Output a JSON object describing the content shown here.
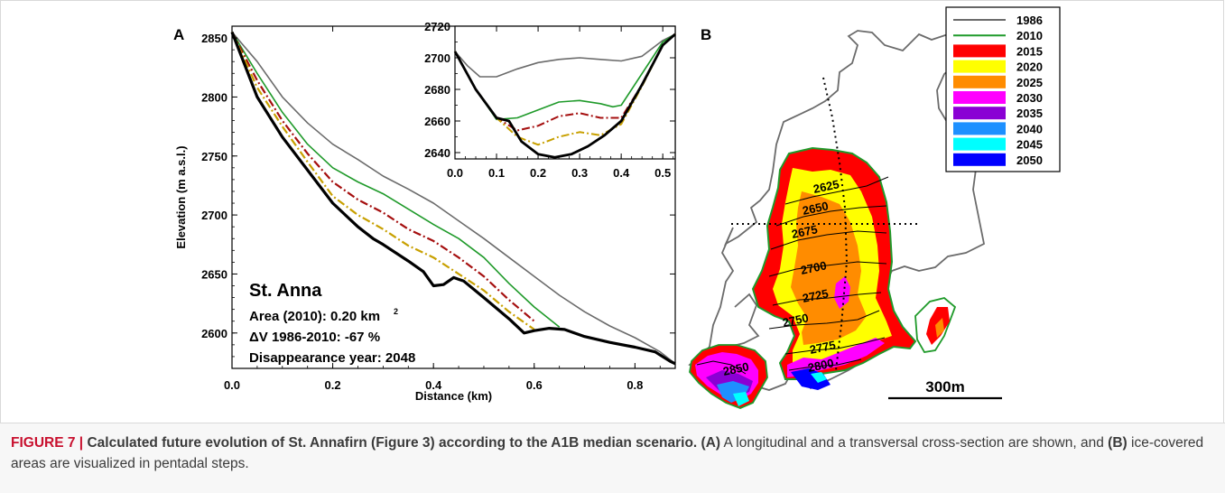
{
  "caption": {
    "label": "FIGURE 7 |",
    "title": "Calculated future evolution of St. Annafirn (Figure 3) according to the A1B median scenario.",
    "ref_a": "(A)",
    "text_a": "A longitudinal and a transversal cross-section are shown, and",
    "ref_b": "(B)",
    "text_b": "ice-covered areas are visualized in pentadal steps."
  },
  "colors": {
    "y1986": "#6b6b6b",
    "y2010": "#1f9a2a",
    "dashdot_red": "#a50f0f",
    "dashdot_yellow": "#c8a000",
    "final": "#000000",
    "s2015": "#ff0000",
    "s2020": "#ffff00",
    "s2025": "#ff8c00",
    "s2030": "#ff00ff",
    "s2035": "#8a00d4",
    "s2040": "#1e90ff",
    "s2045": "#00ffff",
    "s2050": "#0000ff"
  },
  "panel_a": {
    "label": "A",
    "glacier": "St. Anna",
    "area_label": "Area (2010): 0.20 km",
    "area_sup": "2",
    "dv_label": "ΔV 1986-2010: -67 %",
    "disappearance": "Disappearance year: 2048"
  },
  "panel_b": {
    "label": "B",
    "scale_label": "300m",
    "contours": [
      "2625",
      "2650",
      "2675",
      "2700",
      "2725",
      "2750",
      "2775",
      "2800",
      "2850"
    ],
    "legend": [
      {
        "label": "1986",
        "kind": "line",
        "color": "#6b6b6b"
      },
      {
        "label": "2010",
        "kind": "line",
        "color": "#1f9a2a"
      },
      {
        "label": "2015",
        "kind": "box",
        "color": "#ff0000"
      },
      {
        "label": "2020",
        "kind": "box",
        "color": "#ffff00"
      },
      {
        "label": "2025",
        "kind": "box",
        "color": "#ff8c00"
      },
      {
        "label": "2030",
        "kind": "box",
        "color": "#ff00ff"
      },
      {
        "label": "2035",
        "kind": "box",
        "color": "#8a00d4"
      },
      {
        "label": "2040",
        "kind": "box",
        "color": "#1e90ff"
      },
      {
        "label": "2045",
        "kind": "box",
        "color": "#00ffff"
      },
      {
        "label": "2050",
        "kind": "box",
        "color": "#0000ff"
      }
    ]
  },
  "chart_data": [
    {
      "type": "line",
      "xlabel": "Distance (km)",
      "ylabel": "Elevation (m a.s.l.)",
      "xlim": [
        0,
        0.88
      ],
      "ylim": [
        2570,
        2860
      ],
      "xticks": [
        "0.0",
        "0.2",
        "0.4",
        "0.6",
        "0.8"
      ],
      "yticks": [
        "2600",
        "2650",
        "2700",
        "2750",
        "2800",
        "2850"
      ],
      "series": [
        {
          "name": "1986",
          "style": "solid",
          "color": "#6b6b6b",
          "x": [
            0.0,
            0.05,
            0.1,
            0.15,
            0.2,
            0.25,
            0.3,
            0.35,
            0.4,
            0.45,
            0.5,
            0.55,
            0.6,
            0.65,
            0.7,
            0.75,
            0.8,
            0.85,
            0.88
          ],
          "y": [
            2855,
            2830,
            2800,
            2778,
            2760,
            2747,
            2733,
            2722,
            2710,
            2695,
            2680,
            2664,
            2648,
            2632,
            2618,
            2606,
            2596,
            2584,
            2574
          ]
        },
        {
          "name": "2010",
          "style": "solid",
          "color": "#1f9a2a",
          "x": [
            0.0,
            0.05,
            0.1,
            0.15,
            0.2,
            0.25,
            0.3,
            0.35,
            0.4,
            0.45,
            0.5,
            0.55,
            0.6,
            0.65
          ],
          "y": [
            2855,
            2820,
            2787,
            2760,
            2740,
            2728,
            2718,
            2705,
            2692,
            2680,
            2664,
            2642,
            2622,
            2605
          ]
        },
        {
          "name": "",
          "style": "dashdot",
          "color": "#a50f0f",
          "x": [
            0.0,
            0.05,
            0.1,
            0.15,
            0.2,
            0.25,
            0.3,
            0.35,
            0.4,
            0.45,
            0.5,
            0.55,
            0.6
          ],
          "y": [
            2855,
            2814,
            2780,
            2752,
            2728,
            2713,
            2702,
            2688,
            2678,
            2664,
            2648,
            2628,
            2610
          ]
        },
        {
          "name": "",
          "style": "dashdot",
          "color": "#c8a000",
          "x": [
            0.0,
            0.05,
            0.1,
            0.15,
            0.2,
            0.25,
            0.3,
            0.35,
            0.4,
            0.45,
            0.5,
            0.55,
            0.6
          ],
          "y": [
            2855,
            2808,
            2775,
            2745,
            2716,
            2700,
            2688,
            2674,
            2664,
            2650,
            2636,
            2618,
            2603
          ]
        },
        {
          "name": "",
          "style": "solid-thick",
          "color": "#000000",
          "x": [
            0.0,
            0.05,
            0.1,
            0.15,
            0.2,
            0.25,
            0.28,
            0.3,
            0.35,
            0.38,
            0.4,
            0.42,
            0.44,
            0.46,
            0.5,
            0.55,
            0.58,
            0.6,
            0.63,
            0.66,
            0.7,
            0.75,
            0.8,
            0.84,
            0.87,
            0.88
          ],
          "y": [
            2855,
            2800,
            2766,
            2738,
            2710,
            2690,
            2680,
            2675,
            2661,
            2652,
            2640,
            2641,
            2647,
            2644,
            2630,
            2612,
            2600,
            2602,
            2604,
            2603,
            2597,
            2592,
            2588,
            2584,
            2576,
            2574
          ]
        }
      ]
    },
    {
      "type": "line",
      "xlim": [
        0,
        0.53
      ],
      "ylim": [
        2636,
        2720
      ],
      "xticks": [
        "0.0",
        "0.1",
        "0.2",
        "0.3",
        "0.4",
        "0.5"
      ],
      "yticks": [
        "2640",
        "2660",
        "2680",
        "2700",
        "2720"
      ],
      "series": [
        {
          "name": "1986",
          "style": "solid",
          "color": "#6b6b6b",
          "x": [
            0.0,
            0.03,
            0.06,
            0.1,
            0.15,
            0.2,
            0.25,
            0.3,
            0.35,
            0.4,
            0.45,
            0.5,
            0.53
          ],
          "y": [
            2704,
            2695,
            2688,
            2688,
            2693,
            2697,
            2699,
            2700,
            2699,
            2698,
            2701,
            2711,
            2715
          ]
        },
        {
          "name": "2010",
          "style": "solid",
          "color": "#1f9a2a",
          "x": [
            0.0,
            0.05,
            0.1,
            0.15,
            0.2,
            0.25,
            0.3,
            0.35,
            0.38,
            0.4,
            0.45,
            0.5,
            0.53
          ],
          "y": [
            2704,
            2680,
            2661,
            2662,
            2667,
            2672,
            2673,
            2671,
            2669,
            2670,
            2690,
            2710,
            2715
          ]
        },
        {
          "name": "",
          "style": "dashdot",
          "color": "#a50f0f",
          "x": [
            0.0,
            0.05,
            0.1,
            0.15,
            0.2,
            0.25,
            0.3,
            0.35,
            0.4,
            0.45,
            0.5,
            0.53
          ],
          "y": [
            2704,
            2680,
            2662,
            2654,
            2657,
            2663,
            2665,
            2662,
            2662,
            2683,
            2708,
            2715
          ]
        },
        {
          "name": "",
          "style": "dashdot",
          "color": "#c8a000",
          "x": [
            0.0,
            0.05,
            0.1,
            0.15,
            0.2,
            0.25,
            0.3,
            0.35,
            0.4,
            0.45,
            0.5,
            0.53
          ],
          "y": [
            2704,
            2680,
            2662,
            2650,
            2645,
            2650,
            2653,
            2651,
            2658,
            2682,
            2708,
            2715
          ]
        },
        {
          "name": "",
          "style": "solid-thick",
          "color": "#000000",
          "x": [
            0.0,
            0.05,
            0.1,
            0.13,
            0.16,
            0.2,
            0.24,
            0.28,
            0.32,
            0.36,
            0.4,
            0.45,
            0.5,
            0.53
          ],
          "y": [
            2704,
            2680,
            2662,
            2660,
            2647,
            2639,
            2637,
            2639,
            2644,
            2651,
            2660,
            2683,
            2708,
            2715
          ]
        }
      ]
    }
  ]
}
